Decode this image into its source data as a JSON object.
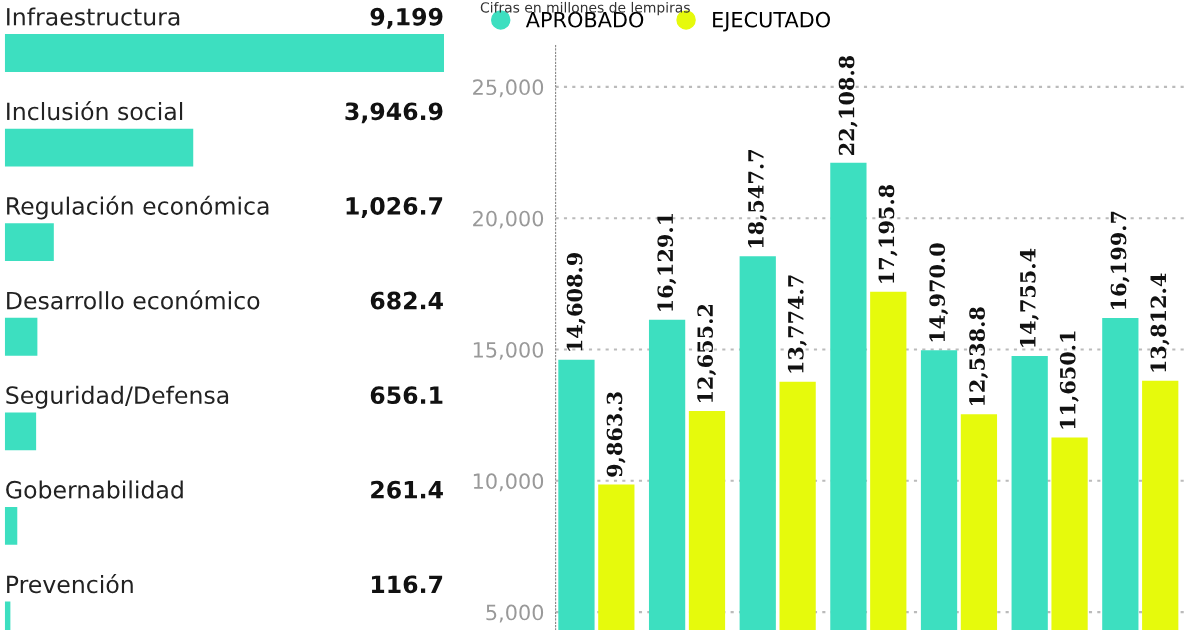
{
  "chart_data": [
    {
      "type": "bar",
      "orientation": "horizontal",
      "categories": [
        "Infraestructura",
        "Inclusión social",
        "Regulación económica",
        "Desarrollo económico",
        "Seguridad/Defensa",
        "Gobernabilidad",
        "Prevención"
      ],
      "values": [
        9199,
        3946.9,
        1026.7,
        682.4,
        656.1,
        261.4,
        116.7
      ],
      "value_labels": [
        "9,199",
        "3,946.9",
        "1,026.7",
        "682.4",
        "656.1",
        "261.4",
        "116.7"
      ],
      "color": "#3ddfc0",
      "tick_labels": false
    },
    {
      "type": "bar",
      "subtitle": "Cifras en millones de lempiras",
      "categories": [
        null,
        null,
        null,
        null,
        null,
        null,
        null
      ],
      "series": [
        {
          "name": "APROBADO",
          "color": "#3ddfc0",
          "values": [
            14608.9,
            16129.1,
            18547.7,
            22108.8,
            14970.0,
            14755.4,
            16199.7
          ],
          "value_labels": [
            "14,608.9",
            "16,129.1",
            "18,547.7",
            "22,108.8",
            "14,970.0",
            "14,755.4",
            "16,199.7"
          ]
        },
        {
          "name": "EJECUTADO",
          "color": "#e6fa0c",
          "values": [
            9863.3,
            12655.2,
            13774.7,
            17195.8,
            12538.8,
            11650.1,
            13812.4
          ],
          "value_labels": [
            "9,863.3",
            "12,655.2",
            "13,774.7",
            "17,195.8",
            "12,538.8",
            "11,650.1",
            "13,812.4"
          ]
        }
      ],
      "ylim": [
        4320,
        26630
      ],
      "yticks": [
        {
          "value": 5000,
          "label": "5,000"
        },
        {
          "value": 10000,
          "label": "10,000"
        },
        {
          "value": 15000,
          "label": "15,000"
        },
        {
          "value": 20000,
          "label": "20,000"
        },
        {
          "value": 25000,
          "label": "25,000"
        }
      ],
      "grid": "y",
      "legend": "top left",
      "tick_labels": "y"
    }
  ]
}
